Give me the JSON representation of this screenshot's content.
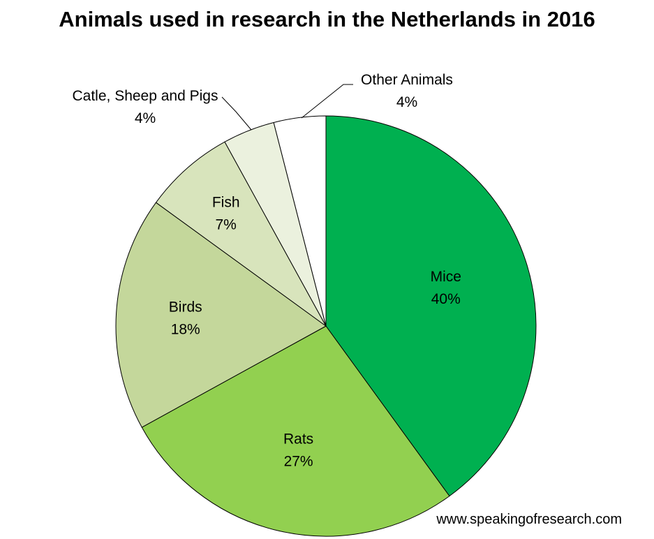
{
  "chart_data": {
    "type": "pie",
    "title": "Animals used in research in the Netherlands in 2016",
    "start": "top",
    "direction": "clockwise",
    "slices": [
      {
        "label": "Mice",
        "value": 40,
        "value_label": "40%",
        "color": "#00b050"
      },
      {
        "label": "Rats",
        "value": 27,
        "value_label": "27%",
        "color": "#92d050"
      },
      {
        "label": "Birds",
        "value": 18,
        "value_label": "18%",
        "color": "#c4d79b"
      },
      {
        "label": "Fish",
        "value": 7,
        "value_label": "7%",
        "color": "#d8e4bc"
      },
      {
        "label": "Catle, Sheep and Pigs",
        "value": 4,
        "value_label": "4%",
        "color": "#ebf1de"
      },
      {
        "label": "Other Animals",
        "value": 4,
        "value_label": "4%",
        "color": "#ffffff"
      }
    ]
  },
  "footer": {
    "source": "www.speakingofresearch.com"
  }
}
